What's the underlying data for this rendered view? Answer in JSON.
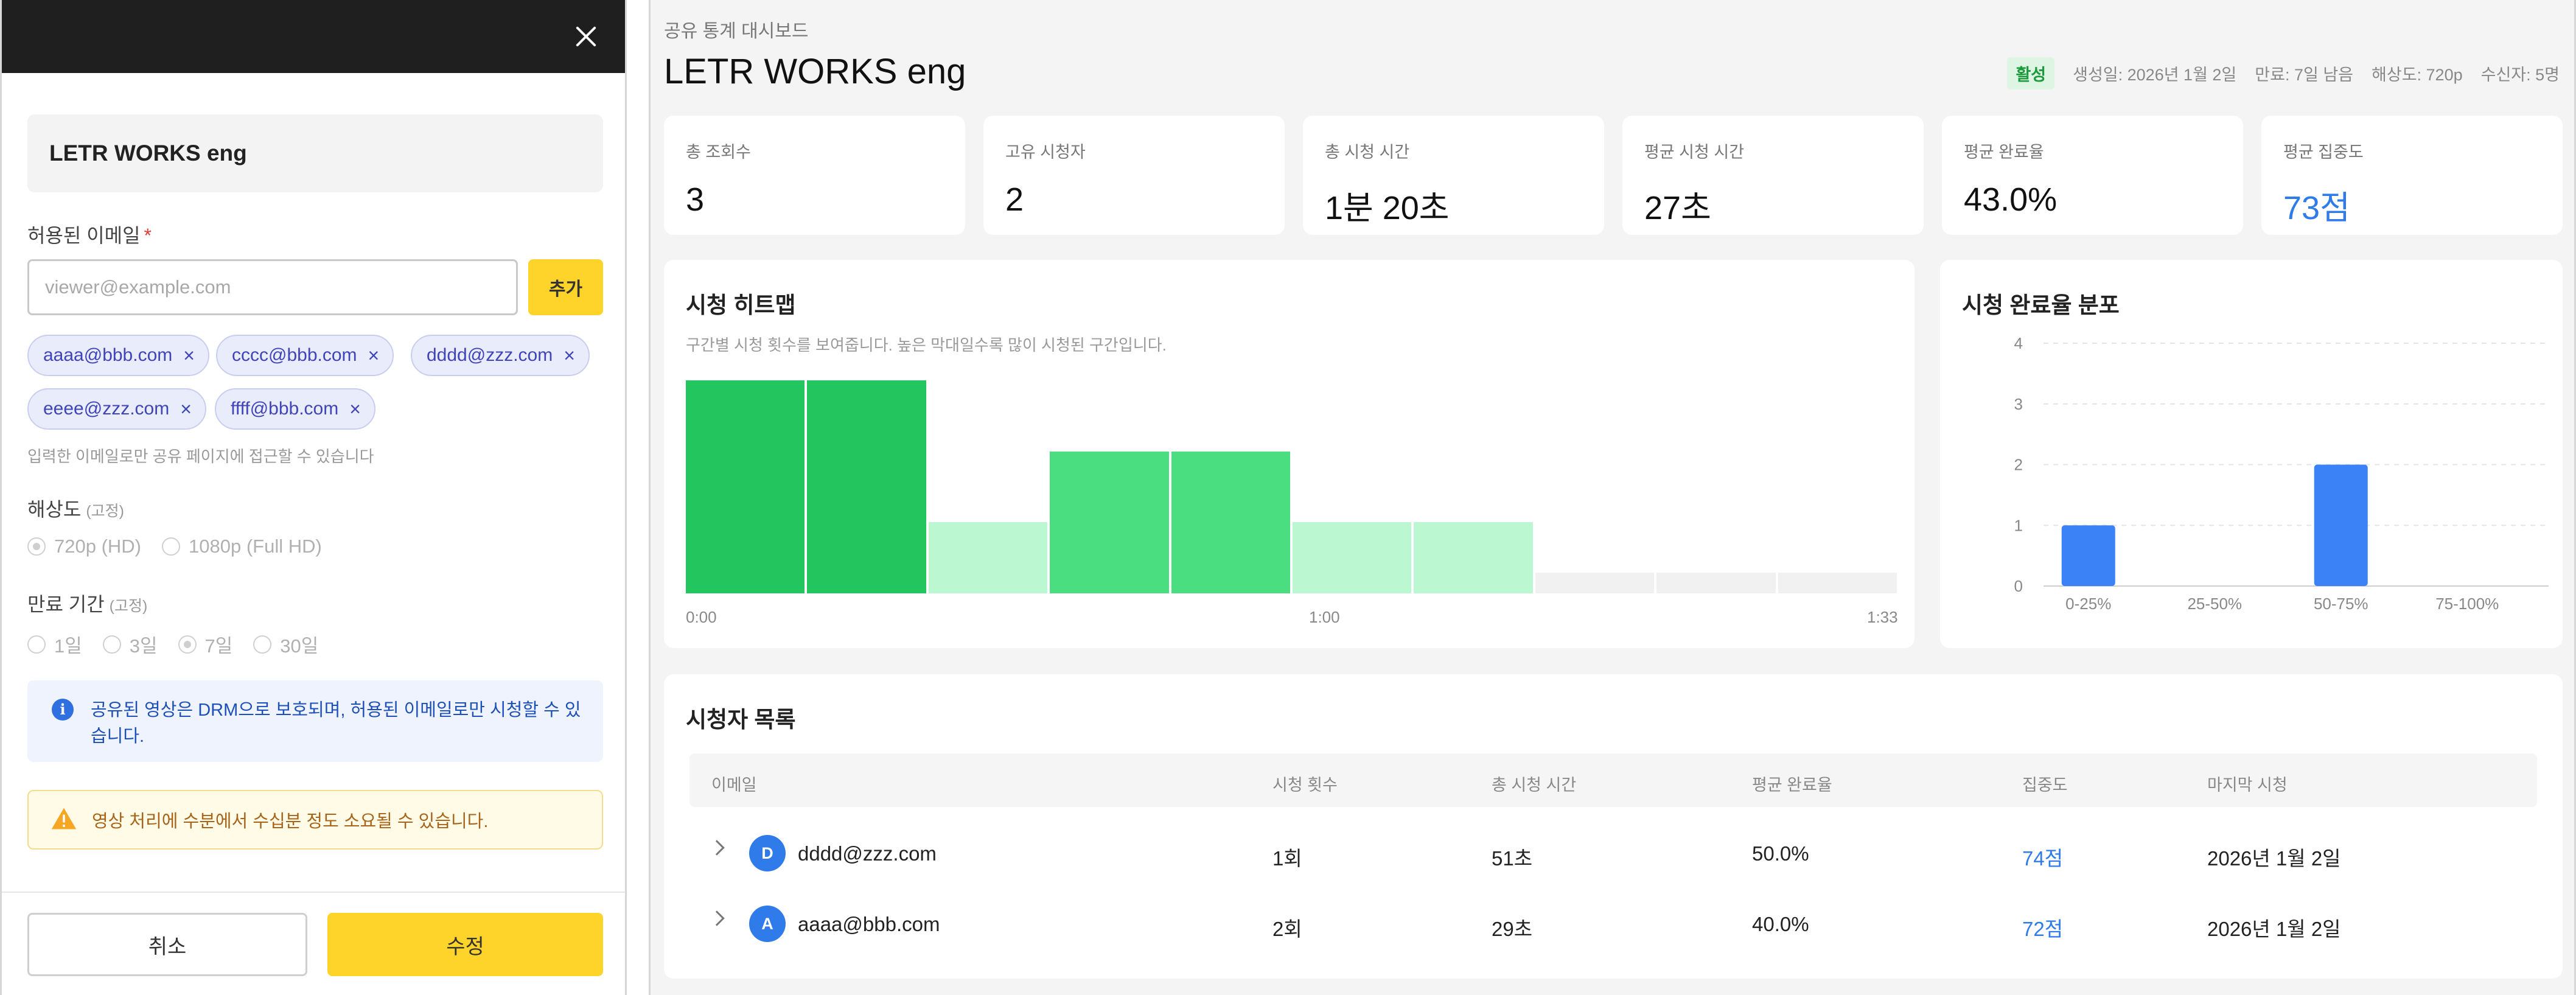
{
  "modal": {
    "project_title": "LETR WORKS eng",
    "email_label": "허용된 이메일",
    "required_mark": "*",
    "email_placeholder": "viewer@example.com",
    "add_button": "추가",
    "emails": [
      {
        "label": "aaaa@bbb.com",
        "remove": "×"
      },
      {
        "label": "cccc@bbb.com",
        "remove": "×"
      },
      {
        "label": "dddd@zzz.com",
        "remove": "×"
      },
      {
        "label": "eeee@zzz.com",
        "remove": "×"
      },
      {
        "label": "ffff@bbb.com",
        "remove": "×"
      }
    ],
    "email_help": "입력한 이메일로만 공유 페이지에 접근할 수 있습니다",
    "resolution_label": "해상도",
    "resolution_fixed": "(고정)",
    "resolution_options": [
      {
        "label": "720p (HD)",
        "selected": true
      },
      {
        "label": "1080p (Full HD)",
        "selected": false
      }
    ],
    "expiry_label": "만료 기간",
    "expiry_fixed": "(고정)",
    "expiry_options": [
      {
        "label": "1일",
        "selected": false
      },
      {
        "label": "3일",
        "selected": false
      },
      {
        "label": "7일",
        "selected": true
      },
      {
        "label": "30일",
        "selected": false
      }
    ],
    "info_icon": "i",
    "info_text": "공유된 영상은 DRM으로 보호되며, 허용된 이메일로만 시청할 수 있습니다.",
    "warning_text": "영상 처리에 수분에서 수십분 정도 소요될 수 있습니다.",
    "cancel_button": "취소",
    "submit_button": "수정"
  },
  "dashboard": {
    "breadcrumb": "공유 통계 대시보드",
    "title": "LETR WORKS eng",
    "status_badge": "활성",
    "meta": {
      "created": "생성일: 2026년 1월 2일",
      "expiry": "만료: 7일 남음",
      "resolution": "해상도: 720p",
      "recipients": "수신자: 5명"
    },
    "stats": [
      {
        "label": "총 조회수",
        "value": "3"
      },
      {
        "label": "고유 시청자",
        "value": "2"
      },
      {
        "label": "총 시청 시간",
        "value": "1분 20초"
      },
      {
        "label": "평균 시청 시간",
        "value": "27초"
      },
      {
        "label": "평균 완료율",
        "value": "43.0%"
      },
      {
        "label": "평균 집중도",
        "value": "73점"
      }
    ],
    "heatmap": {
      "title": "시청 히트맵",
      "description": "구간별 시청 횟수를 보여줍니다. 높은 막대일수록 많이 시청된 구간입니다.",
      "ticks": [
        "0:00",
        "1:00",
        "1:33"
      ],
      "segments": [
        3,
        3,
        1,
        2,
        2,
        1,
        1,
        0,
        0,
        0
      ],
      "colors": {
        "high": "#22c55e",
        "mid": "#4ade80",
        "low": "#bbf7d0",
        "none": "#f1f1f1"
      }
    },
    "distribution": {
      "title": "시청 완료율 분포"
    },
    "viewers": {
      "title": "시청자 목록",
      "headers": {
        "email": "이메일",
        "views": "시청 횟수",
        "total_time": "총 시청 시간",
        "avg_completion": "평균 완료율",
        "focus": "집중도",
        "last_watched": "마지막 시청"
      },
      "rows": [
        {
          "initial": "D",
          "email": "dddd@zzz.com",
          "views": "1회",
          "total_time": "51초",
          "avg_completion": "50.0%",
          "focus": "74점",
          "last_watched": "2026년 1월 2일"
        },
        {
          "initial": "A",
          "email": "aaaa@bbb.com",
          "views": "2회",
          "total_time": "29초",
          "avg_completion": "40.0%",
          "focus": "72점",
          "last_watched": "2026년 1월 2일"
        }
      ]
    }
  },
  "chart_data": {
    "type": "bar",
    "categories": [
      "0-25%",
      "25-50%",
      "50-75%",
      "75-100%"
    ],
    "values": [
      1,
      0,
      2,
      0
    ],
    "title": "시청 완료율 분포",
    "xlabel": "",
    "ylabel": "",
    "ylim": [
      0,
      4
    ],
    "yticks": [
      0,
      1,
      2,
      3,
      4
    ],
    "grid": true,
    "color": "#3b82f6"
  }
}
